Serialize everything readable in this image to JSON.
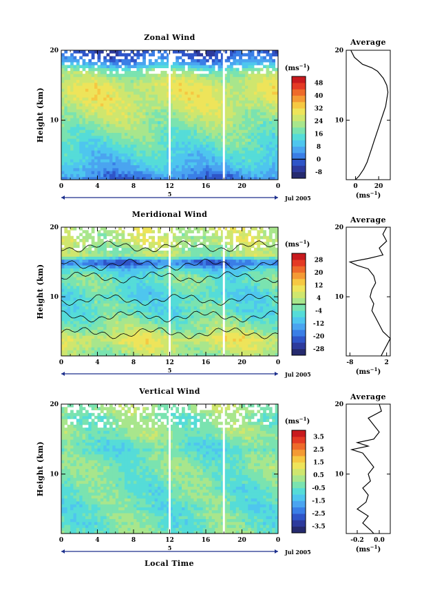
{
  "figure": {
    "xlabel": "Local Time",
    "date_label": "Jul 2005",
    "day_label": "5",
    "unit_label": "(ms",
    "unit_sup": "−1",
    "unit_close": ")",
    "avg_title": "Average"
  },
  "colors": {
    "scale": [
      "#252a6e",
      "#2d3a9c",
      "#2f55c8",
      "#3a7ee6",
      "#4aa4f0",
      "#4ec6ee",
      "#55dcd8",
      "#7ae3b0",
      "#a8e68c",
      "#cfe66e",
      "#eee45a",
      "#f6c842",
      "#f49a34",
      "#ee6a2a",
      "#e43a24",
      "#c81a1e"
    ],
    "contour": "#000000",
    "axis": "#000000"
  },
  "chart_data": [
    {
      "type": "heatmap",
      "title": "Zonal Wind",
      "ylabel": "Height (km)",
      "xlabel": "",
      "x_ticks": [
        "0",
        "4",
        "8",
        "12",
        "16",
        "20",
        "0"
      ],
      "y_ticks": [
        "10",
        "20"
      ],
      "xlim": [
        0,
        24
      ],
      "ylim": [
        1.5,
        20
      ],
      "data_gaps_hours": [
        12,
        18
      ],
      "colorbar": {
        "min": -12,
        "max": 52,
        "labels": [
          "48",
          "40",
          "32",
          "24",
          "16",
          "8",
          "0",
          "-8"
        ],
        "zero_line": true
      },
      "profile": {
        "title": "Average",
        "x_ticks": [
          "0",
          "20"
        ],
        "xlim": [
          -8,
          30
        ],
        "unit": "(ms−1)",
        "heights": [
          1.5,
          2,
          3,
          4,
          5,
          6,
          7,
          8,
          9,
          10,
          11,
          12,
          13,
          14,
          15,
          16,
          17,
          17.5,
          18,
          19,
          20
        ],
        "values": [
          0,
          3,
          7,
          10,
          12,
          14,
          16,
          18,
          20,
          22,
          24,
          26,
          27,
          28,
          27,
          24,
          19,
          14,
          6,
          -1,
          -4
        ]
      }
    },
    {
      "type": "heatmap",
      "title": "Meridional Wind",
      "ylabel": "Height (km)",
      "xlabel": "",
      "x_ticks": [
        "0",
        "4",
        "8",
        "12",
        "16",
        "20",
        "0"
      ],
      "y_ticks": [
        "10",
        "20"
      ],
      "xlim": [
        0,
        24
      ],
      "ylim": [
        1.5,
        20
      ],
      "data_gaps_hours": [
        12,
        18
      ],
      "colorbar": {
        "min": -30,
        "max": 30,
        "labels": [
          "28",
          "20",
          "12",
          "4",
          "-4",
          "-12",
          "-20",
          "-28"
        ],
        "zero_line": true
      },
      "profile": {
        "title": "Average",
        "x_ticks": [
          "-8",
          "2"
        ],
        "xlim": [
          -9,
          3
        ],
        "unit": "(ms−1)",
        "heights": [
          1.5,
          2,
          3,
          4,
          5,
          6,
          7,
          8,
          9,
          10,
          11,
          12,
          13,
          14,
          14.5,
          15,
          15.5,
          16,
          17,
          18,
          19,
          20
        ],
        "values": [
          0.5,
          1,
          2,
          3,
          1,
          0,
          -1,
          -2,
          -1.5,
          -2.5,
          -2,
          -1,
          -1.5,
          -3,
          -6,
          -8,
          -3,
          1,
          0,
          2,
          1,
          2
        ]
      }
    },
    {
      "type": "heatmap",
      "title": "Vertical Wind",
      "ylabel": "Height (km)",
      "xlabel": "Local Time",
      "x_ticks": [
        "0",
        "4",
        "8",
        "12",
        "16",
        "20",
        "0"
      ],
      "y_ticks": [
        "10",
        "20"
      ],
      "xlim": [
        0,
        24
      ],
      "ylim": [
        1.5,
        20
      ],
      "data_gaps_hours": [
        12,
        18
      ],
      "colorbar": {
        "min": -4,
        "max": 4,
        "labels": [
          "3.5",
          "2.5",
          "1.5",
          "0.5",
          "-0.5",
          "-1.5",
          "-2.5",
          "-3.5"
        ],
        "zero_line": false
      },
      "profile": {
        "title": "Average",
        "x_ticks": [
          "-0.2",
          "0.0"
        ],
        "xlim": [
          -0.3,
          0.1
        ],
        "unit": "(ms−1)",
        "heights": [
          1.5,
          2,
          3,
          4,
          5,
          6,
          7,
          8,
          9,
          10,
          11,
          12,
          13,
          13.5,
          14,
          14.5,
          15,
          16,
          17,
          18,
          19,
          20
        ],
        "values": [
          -0.05,
          -0.08,
          -0.15,
          -0.1,
          -0.2,
          -0.12,
          -0.1,
          -0.15,
          -0.08,
          -0.1,
          -0.05,
          -0.1,
          -0.15,
          -0.25,
          -0.1,
          -0.2,
          -0.05,
          0,
          -0.05,
          -0.1,
          0.02,
          0
        ]
      }
    }
  ]
}
